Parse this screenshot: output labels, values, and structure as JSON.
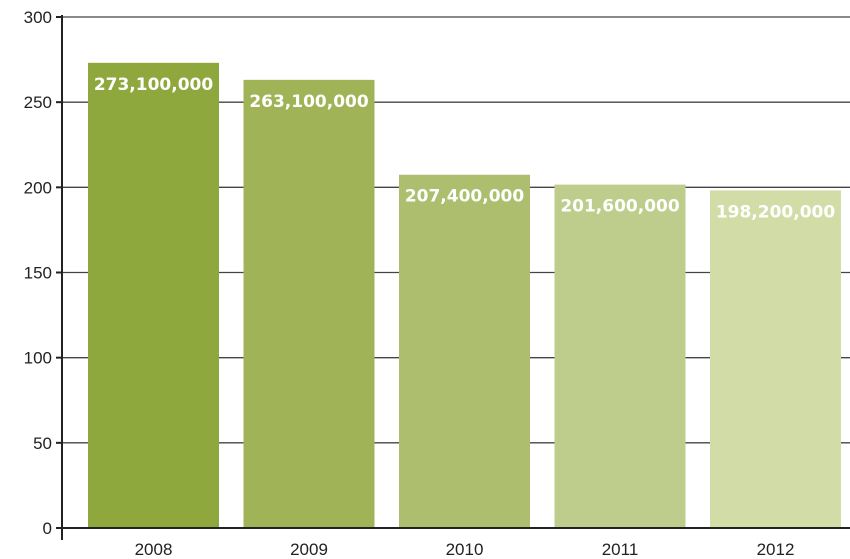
{
  "chart_data": {
    "type": "bar",
    "title": "",
    "xlabel": "",
    "ylabel": "",
    "categories": [
      "2008",
      "2009",
      "2010",
      "2011",
      "2012"
    ],
    "values": [
      273.1,
      263.1,
      207.4,
      201.6,
      198.2
    ],
    "data_labels": [
      "273,100,000",
      "263,100,000",
      "207,400,000",
      "201,600,000",
      "198,200,000"
    ],
    "ylim": [
      0,
      300
    ],
    "yticks": [
      0,
      50,
      100,
      150,
      200,
      250,
      300
    ],
    "ytick_labels": [
      "0",
      "50",
      "100",
      "150",
      "200",
      "250",
      "300"
    ],
    "grid": true,
    "legend": "none",
    "bar_colors": [
      "#8ea83e",
      "#a0b457",
      "#adbf6f",
      "#bfcd8c",
      "#d2dca6"
    ]
  }
}
